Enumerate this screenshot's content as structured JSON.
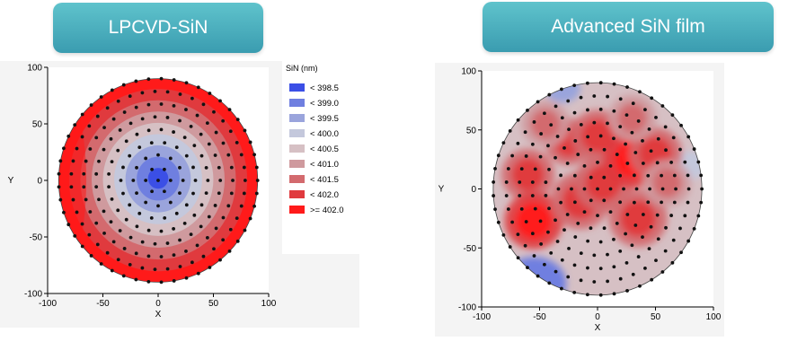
{
  "colors": {
    "scale": [
      "#3b4fe6",
      "#6f7fe0",
      "#9aa4dc",
      "#c4c8dc",
      "#d6c0c4",
      "#cf9a9e",
      "#d36a6e",
      "#e03a3e",
      "#ff1a1a"
    ]
  },
  "chart_data": [
    {
      "type": "heatmap",
      "title": "LPCVD-SiN",
      "xlabel": "X",
      "ylabel": "Y",
      "xlim": [
        -100,
        100
      ],
      "ylim": [
        -100,
        100
      ],
      "xticks": [
        -100,
        -50,
        0,
        50,
        100
      ],
      "yticks": [
        100,
        50,
        0,
        -50,
        -100
      ],
      "wafer_radius": 90,
      "pattern": "radial",
      "description_values": {
        "center_nm": 398.5,
        "edge_nm": 402.0
      },
      "legend": {
        "title": "SiN (nm)",
        "entries": [
          {
            "label": "< 398.5",
            "color": "#3b4fe6"
          },
          {
            "label": "< 399.0",
            "color": "#6f7fe0"
          },
          {
            "label": "< 399.5",
            "color": "#9aa4dc"
          },
          {
            "label": "< 400.0",
            "color": "#c4c8dc"
          },
          {
            "label": "< 400.5",
            "color": "#d6c0c4"
          },
          {
            "label": "< 401.0",
            "color": "#cf9a9e"
          },
          {
            "label": "< 401.5",
            "color": "#d36a6e"
          },
          {
            "label": "< 402.0",
            "color": "#e03a3e"
          },
          {
            "label": ">= 402.0",
            "color": "#ff1a1a"
          }
        ]
      }
    },
    {
      "type": "heatmap",
      "title": "Advanced SiN film",
      "xlabel": "X",
      "ylabel": "Y",
      "xlim": [
        -100,
        100
      ],
      "ylim": [
        -100,
        100
      ],
      "xticks": [
        -100,
        -50,
        0,
        50,
        100
      ],
      "yticks": [
        100,
        50,
        0,
        -50,
        -100
      ],
      "wafer_radius": 90,
      "pattern": "patchy",
      "hotspots": [
        {
          "x": -60,
          "y": 12,
          "r": 20,
          "level": 7
        },
        {
          "x": -55,
          "y": -27,
          "r": 22,
          "level": 8
        },
        {
          "x": -25,
          "y": 40,
          "r": 18,
          "level": 7
        },
        {
          "x": -15,
          "y": -10,
          "r": 22,
          "level": 7
        },
        {
          "x": 0,
          "y": 45,
          "r": 20,
          "level": 7
        },
        {
          "x": 5,
          "y": 5,
          "r": 22,
          "level": 7
        },
        {
          "x": 30,
          "y": 25,
          "r": 22,
          "level": 8
        },
        {
          "x": 50,
          "y": 30,
          "r": 20,
          "level": 7
        },
        {
          "x": 35,
          "y": -25,
          "r": 22,
          "level": 7
        },
        {
          "x": 60,
          "y": 5,
          "r": 18,
          "level": 6
        },
        {
          "x": -45,
          "y": 55,
          "r": 18,
          "level": 6
        },
        {
          "x": 30,
          "y": 60,
          "r": 18,
          "level": 6
        }
      ],
      "coldspots": [
        {
          "x": -55,
          "y": -80,
          "r": 28,
          "level": 1
        },
        {
          "x": -30,
          "y": 85,
          "r": 15,
          "level": 2
        },
        {
          "x": 80,
          "y": 20,
          "r": 15,
          "level": 3
        }
      ]
    }
  ]
}
